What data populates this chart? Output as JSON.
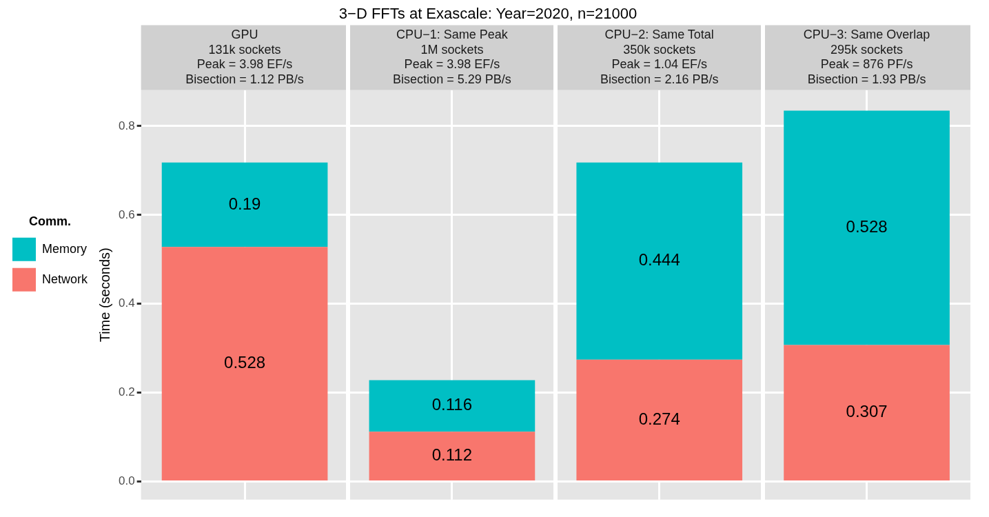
{
  "chart_data": {
    "type": "bar",
    "title": "3−D FFTs at Exascale: Year=2020, n=21000",
    "categories": [
      "GPU\n131k sockets\nPeak = 3.98 EF/s\nBisection = 1.12 PB/s",
      "CPU−1: Same Peak\n1M sockets\nPeak = 3.98 EF/s\nBisection = 5.29 PB/s",
      "CPU−2: Same Total\n350k sockets\nPeak = 1.04 EF/s\nBisection = 2.16 PB/s",
      "CPU−3: Same Overlap\n295k sockets\nPeak = 876 PF/s\nBisection = 1.93 PB/s"
    ],
    "series": [
      {
        "name": "Network",
        "color": "#f8766d",
        "values": [
          0.528,
          0.112,
          0.274,
          0.307
        ]
      },
      {
        "name": "Memory",
        "color": "#00bfc4",
        "values": [
          0.19,
          0.116,
          0.444,
          0.528
        ]
      }
    ],
    "stacked": true,
    "data_labels": true,
    "ylabel": "Time (seconds)",
    "legend_title": "Comm.",
    "legend": "left",
    "grid": true,
    "ylim": [
      -0.041,
      0.881
    ],
    "yticks": [
      {
        "value": 0,
        "label": "0.0"
      },
      0.2,
      0.4,
      0.6,
      0.8
    ]
  }
}
